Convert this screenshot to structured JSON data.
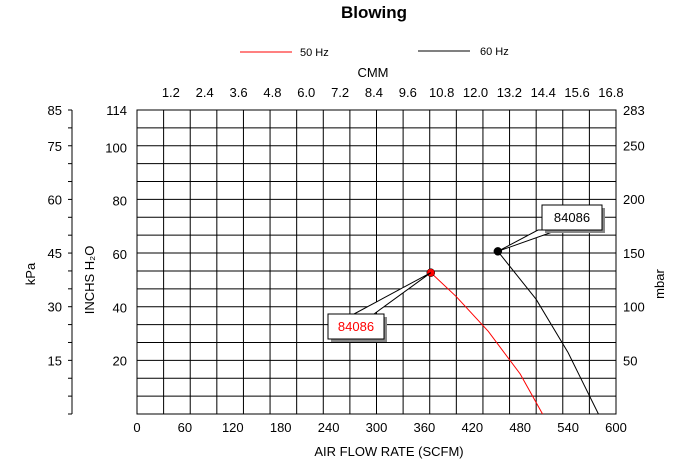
{
  "chart_data": {
    "type": "line",
    "title": "Blowing",
    "legend": [
      {
        "name": "50 Hz",
        "color": "#ff0000"
      },
      {
        "name": "60 Hz",
        "color": "#000000"
      }
    ],
    "legend_placement": "top-center",
    "xlabel": "AIR FLOW RATE (SCFM)",
    "x2label": "CMM",
    "ylabel": "INCHS H₂O",
    "y_left_outer_label": "kPa",
    "y_right_label": "mbar",
    "xlim": [
      0,
      600
    ],
    "ylim": [
      0,
      114
    ],
    "x_ticks": [
      "0",
      "60",
      "120",
      "180",
      "240",
      "300",
      "360",
      "420",
      "480",
      "540",
      "600"
    ],
    "x2_ticks": [
      "1.2",
      "2.4",
      "3.6",
      "4.8",
      "6.0",
      "7.2",
      "8.4",
      "9.6",
      "10.8",
      "12.0",
      "13.2",
      "14.4",
      "15.6",
      "16.8"
    ],
    "y_ticks": [
      "20",
      "40",
      "60",
      "80",
      "100",
      "114"
    ],
    "kpa_ticks": [
      "15",
      "30",
      "45",
      "60",
      "75",
      "85"
    ],
    "mbar_ticks": [
      "50",
      "100",
      "150",
      "200",
      "250",
      "283"
    ],
    "grid": true,
    "series": [
      {
        "name": "50 Hz",
        "color": "#ff0000",
        "x": [
          368,
          400,
          440,
          480,
          508
        ],
        "y": [
          53,
          44,
          31,
          15,
          0
        ],
        "marker": {
          "x": 368,
          "y": 53
        },
        "annotation": "84086"
      },
      {
        "name": "60 Hz",
        "color": "#000000",
        "x": [
          452,
          500,
          540,
          578
        ],
        "y": [
          61,
          43,
          23,
          0
        ],
        "marker": {
          "x": 452,
          "y": 61
        },
        "annotation": "84086"
      }
    ]
  }
}
